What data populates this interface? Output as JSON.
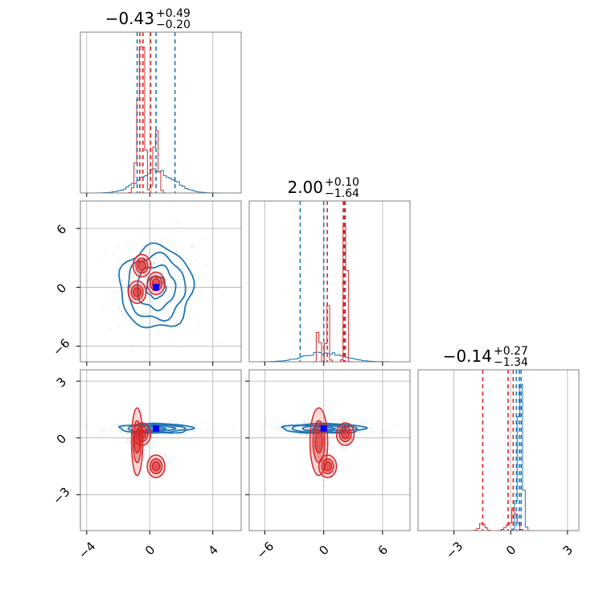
{
  "chart_data": {
    "type": "corner",
    "parameters": [
      "p0",
      "p1",
      "p2"
    ],
    "panel_titles": [
      {
        "main": "−0.43",
        "sup": "+0.49",
        "sub": "−0.20"
      },
      {
        "main": "2.00",
        "sup": "+0.10",
        "sub": "−1.64"
      },
      {
        "main": "−0.14",
        "sup": "+0.27",
        "sub": "−1.34"
      }
    ],
    "axis_ranges": {
      "p0": [
        -4.4,
        5.8
      ],
      "p1": [
        -7.6,
        8.8
      ],
      "p2": [
        -4.9,
        3.6
      ]
    },
    "ticks": {
      "p0": {
        "values": [
          -4,
          0,
          4
        ],
        "labels": [
          "−4",
          "0",
          "4"
        ]
      },
      "p1": {
        "values": [
          -6,
          0,
          6
        ],
        "labels": [
          "−6",
          "0",
          "6"
        ]
      },
      "p2": {
        "values": [
          -3,
          0,
          3
        ],
        "labels": [
          "−3",
          "0",
          "3"
        ]
      }
    },
    "grid": true,
    "colors": {
      "blue": "#1f77b4",
      "red": "#d62728",
      "marker": "#0000ff",
      "red_marker": "#ff0000"
    },
    "series": [
      {
        "color": "blue",
        "quantiles": {
          "p0": [
            -0.8,
            0.4,
            1.6
          ],
          "p1": [
            -2.4,
            0.0,
            2.2
          ],
          "p2": [
            0.3,
            0.45,
            0.55
          ]
        },
        "peak": {
          "p0": 0.4,
          "p1": 0.0,
          "p2": 0.5
        },
        "spread": {
          "p0": 1.1,
          "p1": 2.0,
          "p2": 0.12
        },
        "hist_peak_frac": {
          "p0": 0.15,
          "p1": 0.06,
          "p2": 0.91
        }
      },
      {
        "color": "red",
        "quantiles": {
          "p0": [
            -0.63,
            -0.43,
            0.06
          ],
          "p1": [
            0.36,
            2.0,
            2.1
          ],
          "p2": [
            -1.48,
            -0.14,
            0.13
          ]
        },
        "modes": [
          {
            "p0": -0.5,
            "p1": 2.2,
            "p2": 0.2
          },
          {
            "p0": 0.4,
            "p1": 0.4,
            "p2": -1.5
          },
          {
            "p0": -0.8,
            "p1": -0.5,
            "p2": -0.2
          }
        ],
        "hist_peak_frac": {
          "p0": 0.91,
          "p1": 0.84,
          "p2": 0.14
        }
      }
    ]
  }
}
